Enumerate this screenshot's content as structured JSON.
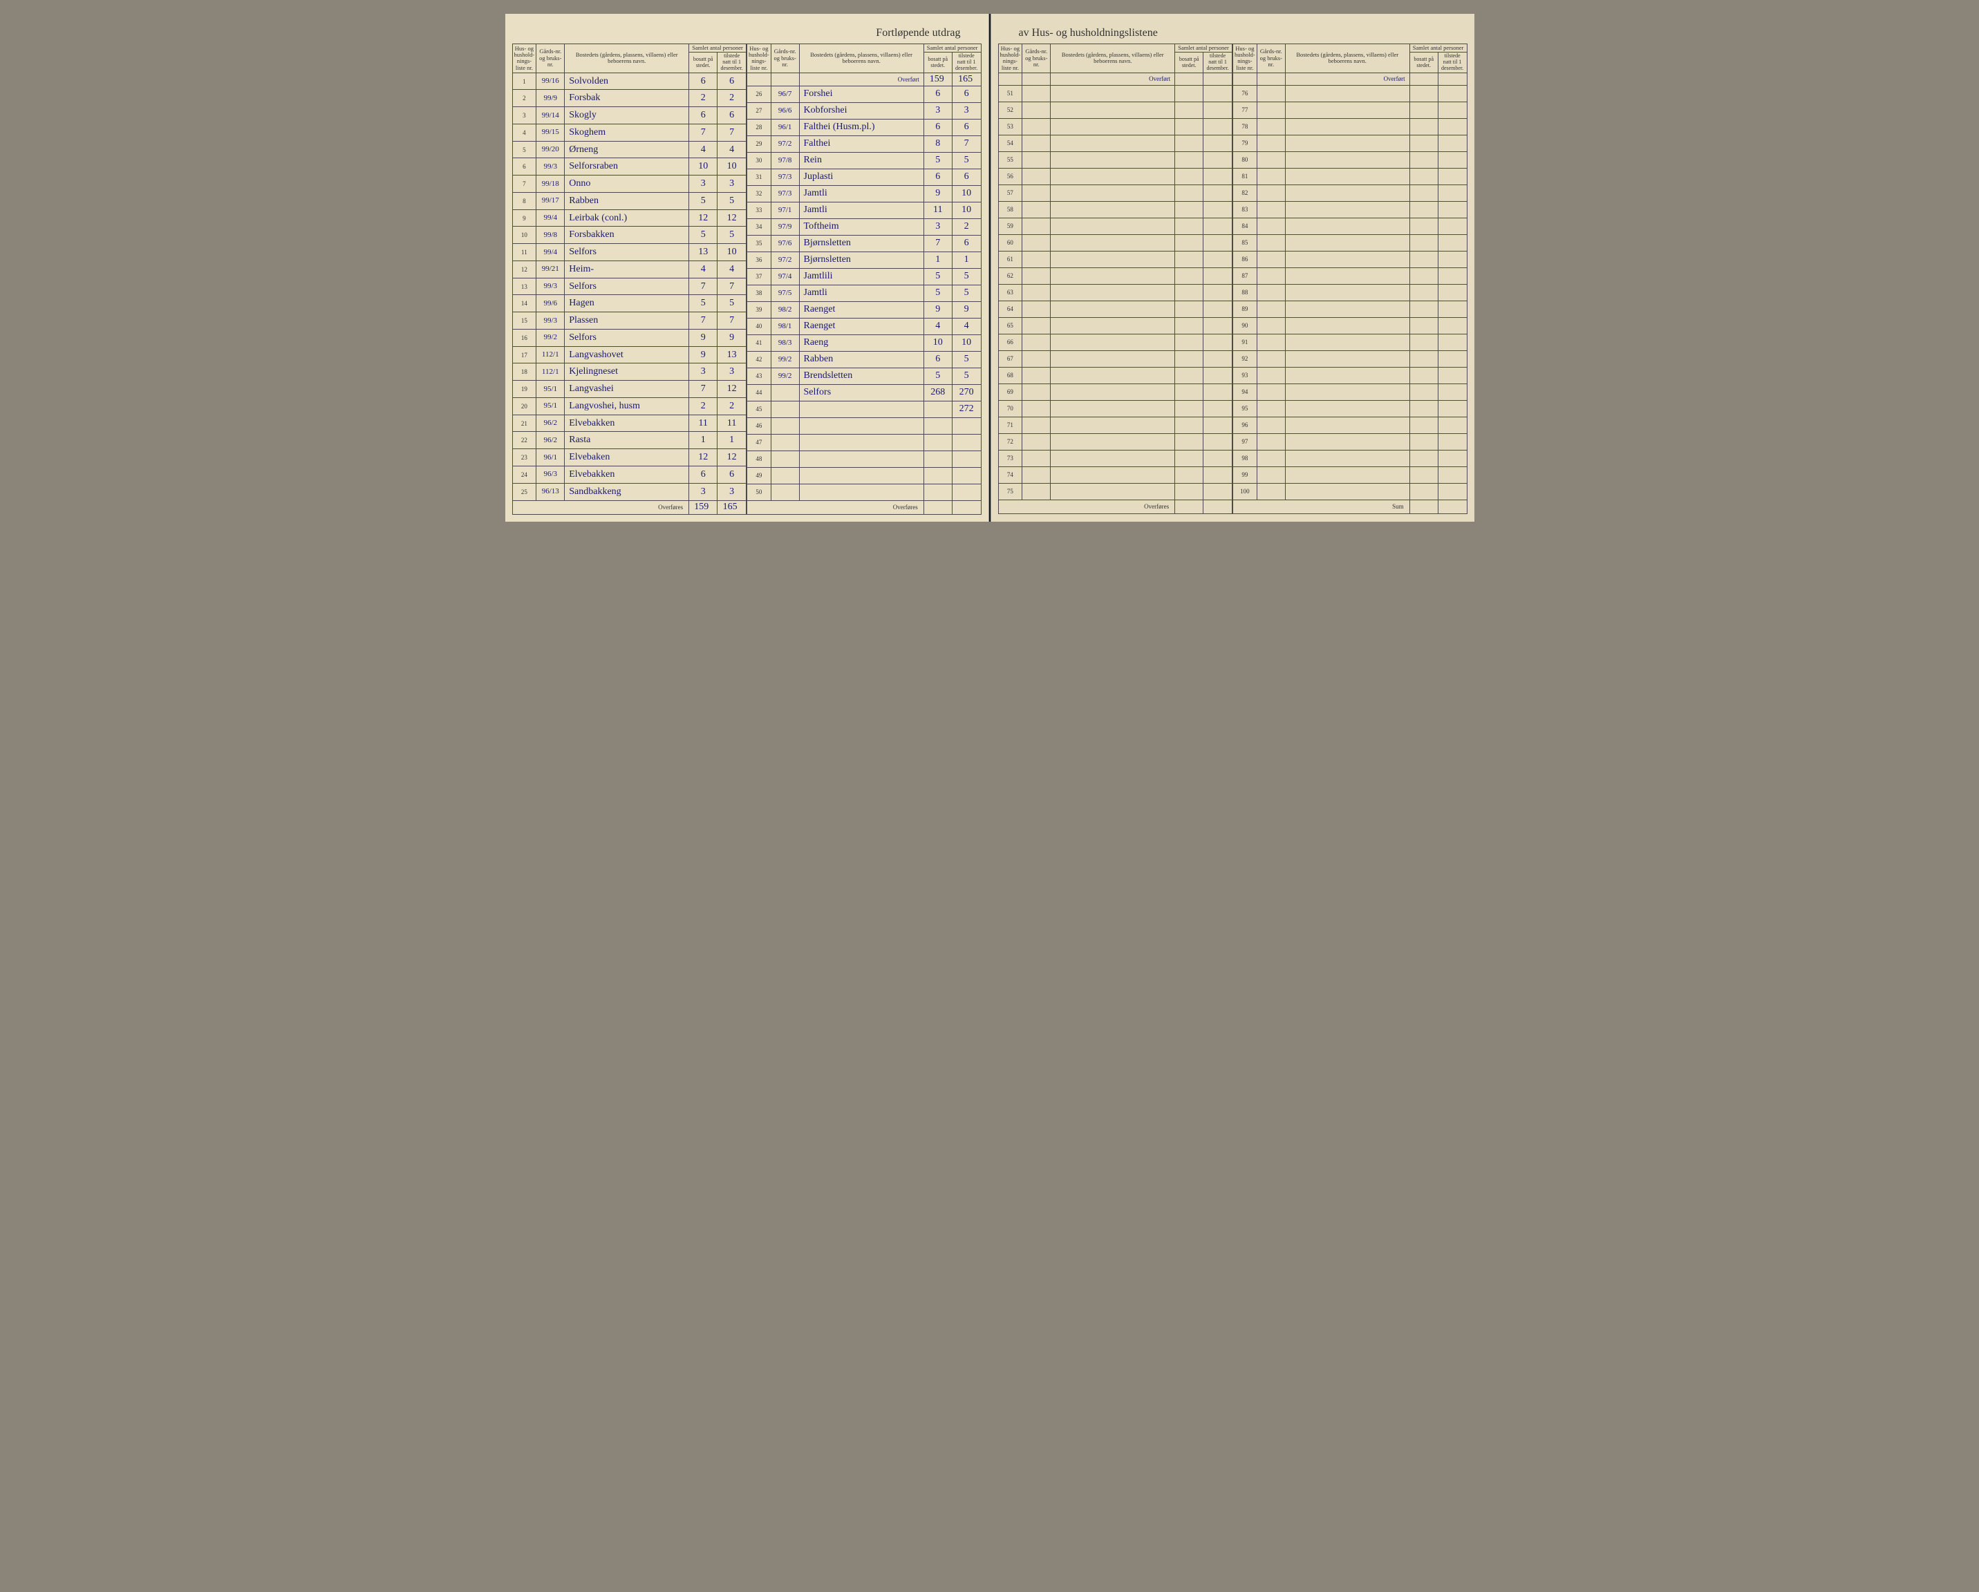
{
  "title_left": "Fortløpende utdrag",
  "title_right": "av Hus- og husholdningslistene",
  "headers": {
    "hus": "Hus- og hushold-nings-liste nr.",
    "gards": "Gårds-nr. og bruks-nr.",
    "bosted": "Bostedets (gårdens, plassens, villaens) eller beboerens navn.",
    "samlet": "Samlet antal personer",
    "bosatt": "bosatt på stedet.",
    "tilstede": "tilstede natt til 1 desember."
  },
  "overfort": "Overført",
  "overfores": "Overføres",
  "sum": "Sum",
  "left_block_a": [
    {
      "n": 1,
      "g": "99/16",
      "name": "Solvolden",
      "b": "6",
      "t": "6"
    },
    {
      "n": 2,
      "g": "99/9",
      "name": "Forsbak",
      "b": "2",
      "t": "2"
    },
    {
      "n": 3,
      "g": "99/14",
      "name": "Skogly",
      "b": "6",
      "t": "6"
    },
    {
      "n": 4,
      "g": "99/15",
      "name": "Skoghem",
      "b": "7",
      "t": "7"
    },
    {
      "n": 5,
      "g": "99/20",
      "name": "Ørneng",
      "b": "4",
      "t": "4"
    },
    {
      "n": 6,
      "g": "99/3",
      "name": "Selforsraben",
      "b": "10",
      "t": "10"
    },
    {
      "n": 7,
      "g": "99/18",
      "name": "Onno",
      "b": "3",
      "t": "3"
    },
    {
      "n": 8,
      "g": "99/17",
      "name": "Rabben",
      "b": "5",
      "t": "5"
    },
    {
      "n": 9,
      "g": "99/4",
      "name": "Leirbak (conl.)",
      "b": "12",
      "t": "12"
    },
    {
      "n": 10,
      "g": "99/8",
      "name": "Forsbakken",
      "b": "5",
      "t": "5"
    },
    {
      "n": 11,
      "g": "99/4",
      "name": "Selfors",
      "b": "13",
      "t": "10"
    },
    {
      "n": 12,
      "g": "99/21",
      "name": "Heim-",
      "b": "4",
      "t": "4"
    },
    {
      "n": 13,
      "g": "99/3",
      "name": "Selfors",
      "b": "7",
      "t": "7"
    },
    {
      "n": 14,
      "g": "99/6",
      "name": "Hagen",
      "b": "5",
      "t": "5"
    },
    {
      "n": 15,
      "g": "99/3",
      "name": "Plassen",
      "b": "7",
      "t": "7"
    },
    {
      "n": 16,
      "g": "99/2",
      "name": "Selfors",
      "b": "9",
      "t": "9"
    },
    {
      "n": 17,
      "g": "112/1",
      "name": "Langvashovet",
      "b": "9",
      "t": "13"
    },
    {
      "n": 18,
      "g": "112/1",
      "name": "Kjelingneset",
      "b": "3",
      "t": "3"
    },
    {
      "n": 19,
      "g": "95/1",
      "name": "Langvashei",
      "b": "7",
      "t": "12"
    },
    {
      "n": 20,
      "g": "95/1",
      "name": "Langvoshei, husm",
      "b": "2",
      "t": "2"
    },
    {
      "n": 21,
      "g": "96/2",
      "name": "Elvebakken",
      "b": "11",
      "t": "11"
    },
    {
      "n": 22,
      "g": "96/2",
      "name": "Rasta",
      "b": "1",
      "t": "1"
    },
    {
      "n": 23,
      "g": "96/1",
      "name": "Elvebaken",
      "b": "12",
      "t": "12"
    },
    {
      "n": 24,
      "g": "96/3",
      "name": "Elvebakken",
      "b": "6",
      "t": "6"
    },
    {
      "n": 25,
      "g": "96/13",
      "name": "Sandbakkeng",
      "b": "3",
      "t": "3"
    }
  ],
  "left_totals_a": {
    "b": "159",
    "t": "165"
  },
  "left_block_b_overfort": {
    "b": "159",
    "t": "165"
  },
  "left_block_b": [
    {
      "n": 26,
      "g": "96/7",
      "name": "Forshei",
      "b": "6",
      "t": "6"
    },
    {
      "n": 27,
      "g": "96/6",
      "name": "Kobforshei",
      "b": "3",
      "t": "3"
    },
    {
      "n": 28,
      "g": "96/1",
      "name": "Falthei (Husm.pl.)",
      "b": "6",
      "t": "6"
    },
    {
      "n": 29,
      "g": "97/2",
      "name": "Falthei",
      "b": "8",
      "t": "7"
    },
    {
      "n": 30,
      "g": "97/8",
      "name": "Rein",
      "b": "5",
      "t": "5"
    },
    {
      "n": 31,
      "g": "97/3",
      "name": "Juplasti",
      "b": "6",
      "t": "6"
    },
    {
      "n": 32,
      "g": "97/3",
      "name": "Jamtli",
      "b": "9",
      "t": "10"
    },
    {
      "n": 33,
      "g": "97/1",
      "name": "Jamtli",
      "b": "11",
      "t": "10"
    },
    {
      "n": 34,
      "g": "97/9",
      "name": "Toftheim",
      "b": "3",
      "t": "2"
    },
    {
      "n": 35,
      "g": "97/6",
      "name": "Bjørnsletten",
      "b": "7",
      "t": "6"
    },
    {
      "n": 36,
      "g": "97/2",
      "name": "Bjørnsletten",
      "b": "1",
      "t": "1"
    },
    {
      "n": 37,
      "g": "97/4",
      "name": "Jamtlili",
      "b": "5",
      "t": "5"
    },
    {
      "n": 38,
      "g": "97/5",
      "name": "Jamtli",
      "b": "5",
      "t": "5"
    },
    {
      "n": 39,
      "g": "98/2",
      "name": "Raenget",
      "b": "9",
      "t": "9"
    },
    {
      "n": 40,
      "g": "98/1",
      "name": "Raenget",
      "b": "4",
      "t": "4"
    },
    {
      "n": 41,
      "g": "98/3",
      "name": "Raeng",
      "b": "10",
      "t": "10"
    },
    {
      "n": 42,
      "g": "99/2",
      "name": "Rabben",
      "b": "6",
      "t": "5"
    },
    {
      "n": 43,
      "g": "99/2",
      "name": "Brendsletten",
      "b": "5",
      "t": "5"
    },
    {
      "n": 44,
      "g": "",
      "name": "Selfors",
      "b": "268",
      "t": "270"
    },
    {
      "n": 45,
      "g": "",
      "name": "",
      "b": "",
      "t": "272"
    },
    {
      "n": 46,
      "g": "",
      "name": "",
      "b": "",
      "t": ""
    },
    {
      "n": 47,
      "g": "",
      "name": "",
      "b": "",
      "t": ""
    },
    {
      "n": 48,
      "g": "",
      "name": "",
      "b": "",
      "t": ""
    },
    {
      "n": 49,
      "g": "",
      "name": "",
      "b": "",
      "t": ""
    },
    {
      "n": 50,
      "g": "",
      "name": "",
      "b": "",
      "t": ""
    }
  ],
  "right_block_c": [
    {
      "n": 51
    },
    {
      "n": 52
    },
    {
      "n": 53
    },
    {
      "n": 54
    },
    {
      "n": 55
    },
    {
      "n": 56
    },
    {
      "n": 57
    },
    {
      "n": 58
    },
    {
      "n": 59
    },
    {
      "n": 60
    },
    {
      "n": 61
    },
    {
      "n": 62
    },
    {
      "n": 63
    },
    {
      "n": 64
    },
    {
      "n": 65
    },
    {
      "n": 66
    },
    {
      "n": 67
    },
    {
      "n": 68
    },
    {
      "n": 69
    },
    {
      "n": 70
    },
    {
      "n": 71
    },
    {
      "n": 72
    },
    {
      "n": 73
    },
    {
      "n": 74
    },
    {
      "n": 75
    }
  ],
  "right_block_d": [
    {
      "n": 76
    },
    {
      "n": 77
    },
    {
      "n": 78
    },
    {
      "n": 79
    },
    {
      "n": 80
    },
    {
      "n": 81
    },
    {
      "n": 82
    },
    {
      "n": 83
    },
    {
      "n": 84
    },
    {
      "n": 85
    },
    {
      "n": 86
    },
    {
      "n": 87
    },
    {
      "n": 88
    },
    {
      "n": 89
    },
    {
      "n": 90
    },
    {
      "n": 91
    },
    {
      "n": 92
    },
    {
      "n": 93
    },
    {
      "n": 94
    },
    {
      "n": 95
    },
    {
      "n": 96
    },
    {
      "n": 97
    },
    {
      "n": 98
    },
    {
      "n": 99
    },
    {
      "n": 100
    }
  ],
  "colors": {
    "paper": "#e8dfc5",
    "paper_right": "#e4dbc0",
    "ink": "#1a1a6b",
    "print": "#333333",
    "border": "#4a4a4a"
  }
}
